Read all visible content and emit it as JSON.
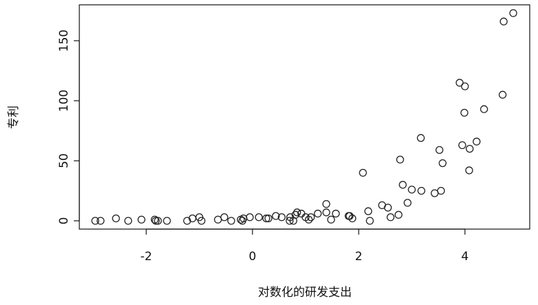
{
  "chart_data": {
    "type": "scatter",
    "x_label": "对数化的研发支出",
    "y_label": "专利",
    "x": [
      -2.96,
      -2.86,
      -2.57,
      -2.34,
      -2.09,
      -1.84,
      -1.82,
      -1.78,
      -1.61,
      -1.23,
      -1.13,
      -1.0,
      -0.96,
      -0.65,
      -0.53,
      -0.4,
      -0.22,
      -0.19,
      -0.17,
      -0.05,
      0.12,
      0.26,
      0.3,
      0.44,
      0.55,
      0.7,
      0.71,
      0.77,
      0.81,
      0.84,
      0.92,
      1.0,
      1.06,
      1.1,
      1.23,
      1.39,
      1.39,
      1.48,
      1.57,
      1.81,
      1.83,
      1.88,
      2.08,
      2.18,
      2.21,
      2.44,
      2.55,
      2.6,
      2.75,
      2.78,
      2.83,
      2.92,
      3.0,
      3.17,
      3.18,
      3.43,
      3.52,
      3.55,
      3.58,
      3.9,
      3.95,
      3.99,
      4.0,
      4.08,
      4.09,
      4.22,
      4.36,
      4.71,
      4.73,
      4.91
    ],
    "values": [
      0,
      0,
      2,
      0,
      1,
      1,
      0,
      0,
      0,
      0,
      2,
      3,
      0,
      1,
      3,
      0,
      1,
      0,
      2,
      3,
      3,
      2,
      2,
      4,
      3,
      0,
      3,
      0,
      5,
      7,
      6,
      3,
      1,
      3,
      6,
      14,
      7,
      1,
      6,
      4,
      4,
      2,
      40,
      8,
      0,
      13,
      11,
      3,
      5,
      51,
      30,
      15,
      26,
      69,
      25,
      23,
      59,
      25,
      48,
      115,
      63,
      90,
      112,
      42,
      60,
      66,
      93,
      105,
      166,
      173
    ],
    "xlim": [
      -3.26,
      5.22
    ],
    "ylim": [
      -6.9,
      179.9
    ],
    "xticks": [
      -2,
      0,
      2,
      4
    ],
    "yticks": [
      0,
      50,
      100,
      150
    ]
  }
}
